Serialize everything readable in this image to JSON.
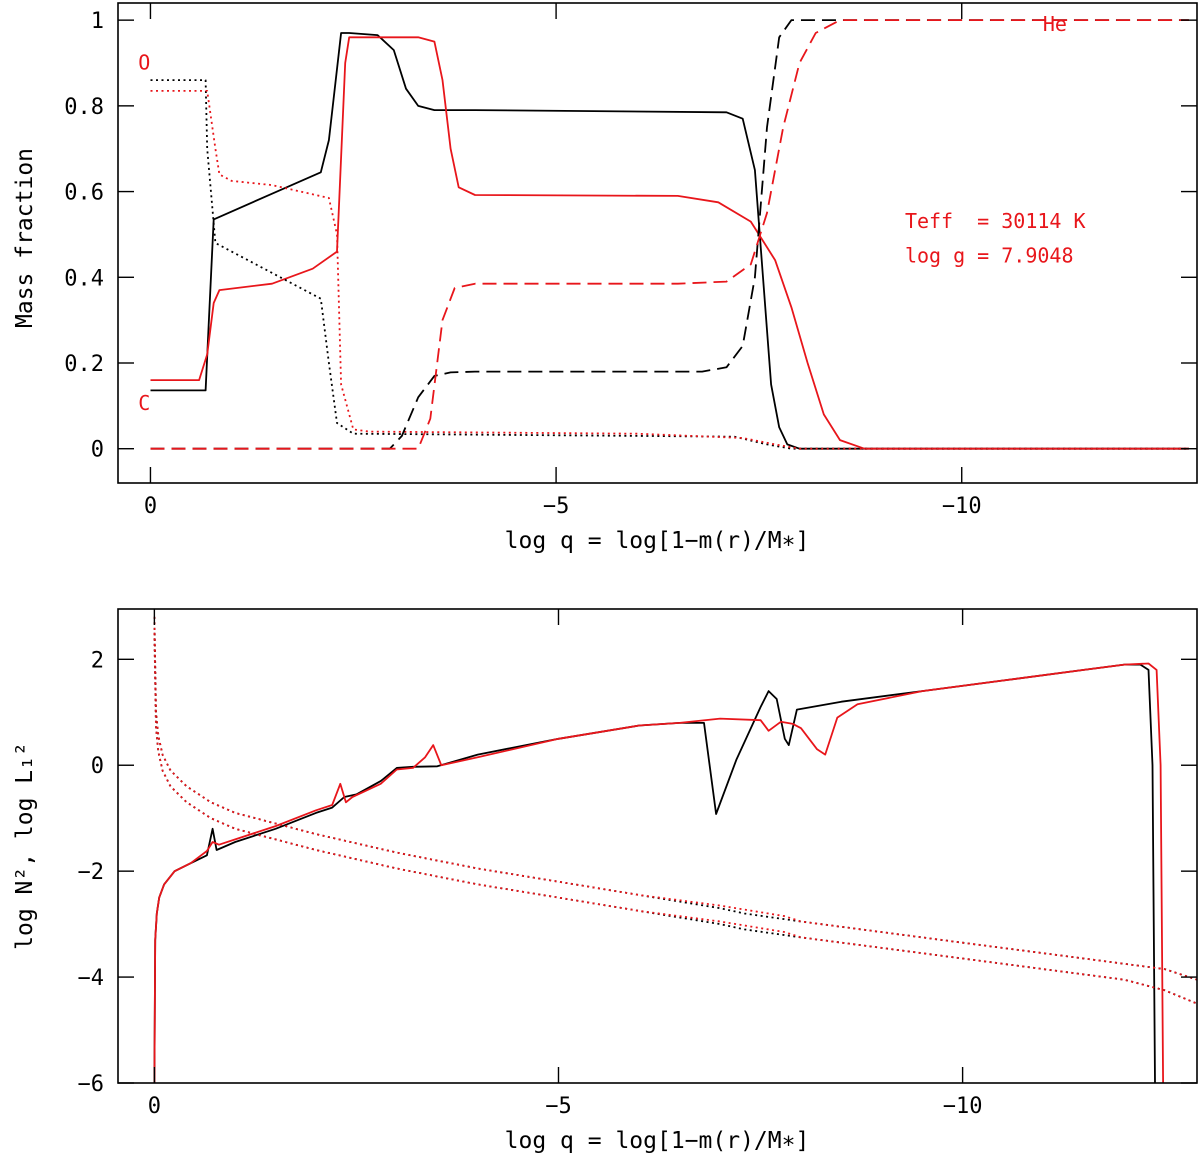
{
  "chart_data": [
    {
      "type": "line",
      "id": "top",
      "xlabel": "log q = log[1−m(r)/M∗]",
      "ylabel": "Mass fraction",
      "xlim": [
        0.4,
        -12.9
      ],
      "ylim": [
        -0.08,
        1.04
      ],
      "xticks": [
        0,
        -5,
        -10
      ],
      "xtick_labels": [
        "0",
        "−5",
        "−10"
      ],
      "yticks": [
        0,
        0.2,
        0.4,
        0.6,
        0.8,
        1
      ],
      "ytick_labels": [
        "0",
        "0.2",
        "0.4",
        "0.6",
        "0.8",
        "1"
      ],
      "annotations": [
        {
          "text": "O",
          "x": 0.15,
          "y": 0.885,
          "color": "#e8161b"
        },
        {
          "text": "C",
          "x": 0.15,
          "y": 0.09,
          "color": "#e8161b"
        },
        {
          "text": "He",
          "x": -11.0,
          "y": 0.975,
          "color": "#e8161b"
        },
        {
          "text": "Teff  = 30114 K",
          "x": -9.3,
          "y": 0.515,
          "color": "#e8161b"
        },
        {
          "text": "log g = 7.9048",
          "x": -9.3,
          "y": 0.435,
          "color": "#e8161b"
        }
      ],
      "series": [
        {
          "name": "C (black)",
          "element": "C",
          "color": "#000000",
          "dash": "solid",
          "x": [
            0,
            -0.68,
            -0.72,
            -0.78,
            -1.5,
            -2.1,
            -2.2,
            -2.35,
            -2.45,
            -2.8,
            -3.0,
            -3.15,
            -3.3,
            -3.5,
            -4.0,
            -7.1,
            -7.3,
            -7.45,
            -7.55,
            -7.65,
            -7.75,
            -7.85,
            -8.0,
            -12.8
          ],
          "y": [
            0.136,
            0.136,
            0.3,
            0.535,
            0.595,
            0.645,
            0.72,
            0.97,
            0.97,
            0.965,
            0.93,
            0.84,
            0.8,
            0.79,
            0.79,
            0.785,
            0.77,
            0.65,
            0.4,
            0.15,
            0.05,
            0.01,
            0.0,
            0.0
          ]
        },
        {
          "name": "C (red)",
          "element": "C",
          "color": "#e8161b",
          "dash": "solid",
          "x": [
            0,
            -0.6,
            -0.7,
            -0.78,
            -0.85,
            -1.5,
            -2.0,
            -2.3,
            -2.4,
            -2.45,
            -3.3,
            -3.5,
            -3.6,
            -3.7,
            -3.8,
            -4.0,
            -6.5,
            -7.0,
            -7.4,
            -7.7,
            -7.9,
            -8.1,
            -8.3,
            -8.5,
            -8.8,
            -12.8
          ],
          "y": [
            0.16,
            0.16,
            0.22,
            0.34,
            0.37,
            0.385,
            0.42,
            0.46,
            0.9,
            0.96,
            0.96,
            0.95,
            0.86,
            0.7,
            0.61,
            0.592,
            0.59,
            0.575,
            0.53,
            0.44,
            0.33,
            0.2,
            0.08,
            0.02,
            0.0,
            0.0
          ]
        },
        {
          "name": "O (black)",
          "element": "O",
          "color": "#000000",
          "dash": "dot",
          "x": [
            0,
            -0.68,
            -0.7,
            -0.8,
            -1.2,
            -2.1,
            -2.2,
            -2.3,
            -2.5,
            -6.0,
            -7.2,
            -7.6,
            -7.9,
            -12.8
          ],
          "y": [
            0.86,
            0.86,
            0.7,
            0.48,
            0.44,
            0.35,
            0.2,
            0.06,
            0.035,
            0.03,
            0.028,
            0.01,
            0.0,
            0.0
          ]
        },
        {
          "name": "O (red)",
          "element": "O",
          "color": "#e8161b",
          "dash": "dot",
          "x": [
            0,
            -0.7,
            -0.8,
            -0.85,
            -1.0,
            -1.5,
            -2.2,
            -2.3,
            -2.35,
            -2.5,
            -2.7,
            -6.0,
            -7.3,
            -7.7,
            -8.0,
            -12.8
          ],
          "y": [
            0.835,
            0.835,
            0.7,
            0.64,
            0.625,
            0.615,
            0.585,
            0.5,
            0.15,
            0.045,
            0.04,
            0.035,
            0.025,
            0.01,
            0.0,
            0.0
          ]
        },
        {
          "name": "He (black)",
          "element": "He",
          "color": "#000000",
          "dash": "dash",
          "x": [
            0,
            -2.95,
            -3.1,
            -3.3,
            -3.5,
            -3.7,
            -4.0,
            -6.8,
            -7.1,
            -7.3,
            -7.45,
            -7.6,
            -7.75,
            -7.9,
            -12.8
          ],
          "y": [
            0.0,
            0.0,
            0.03,
            0.12,
            0.17,
            0.178,
            0.18,
            0.18,
            0.19,
            0.24,
            0.4,
            0.75,
            0.96,
            1.0,
            1.0
          ]
        },
        {
          "name": "He (red)",
          "element": "He",
          "color": "#e8161b",
          "dash": "dash",
          "x": [
            0,
            -3.3,
            -3.45,
            -3.6,
            -3.75,
            -4.0,
            -6.5,
            -7.1,
            -7.4,
            -7.6,
            -7.8,
            -8.0,
            -8.2,
            -8.5,
            -12.8
          ],
          "y": [
            0.0,
            0.0,
            0.07,
            0.3,
            0.375,
            0.385,
            0.385,
            0.39,
            0.43,
            0.55,
            0.75,
            0.9,
            0.97,
            1.0,
            1.0
          ]
        }
      ]
    },
    {
      "type": "line",
      "id": "bottom",
      "xlabel": "log q = log[1−m(r)/M∗]",
      "ylabel": "log N², log L₁²",
      "xlim": [
        0.45,
        -12.9
      ],
      "ylim": [
        -6,
        2.95
      ],
      "xticks": [
        0,
        -5,
        -10
      ],
      "xtick_labels": [
        "0",
        "−5",
        "−10"
      ],
      "yticks": [
        2,
        0,
        -2,
        -4,
        -6
      ],
      "ytick_labels": [
        "2",
        "0",
        "−2",
        "−4",
        "−6"
      ],
      "series": [
        {
          "name": "log N² (black)",
          "color": "#000000",
          "dash": "solid",
          "x": [
            0,
            -0.01,
            -0.03,
            -0.06,
            -0.12,
            -0.25,
            -0.45,
            -0.65,
            -0.72,
            -0.77,
            -1.0,
            -1.5,
            -2.0,
            -2.2,
            -2.35,
            -2.5,
            -2.8,
            -3.0,
            -3.2,
            -3.5,
            -4.0,
            -5.0,
            -6.0,
            -6.5,
            -6.8,
            -6.95,
            -7.2,
            -7.5,
            -7.6,
            -7.7,
            -7.8,
            -7.85,
            -7.95,
            -8.5,
            -9.5,
            -10.5,
            -11.5,
            -12.0,
            -12.2,
            -12.3,
            -12.35,
            -12.38
          ],
          "y": [
            -6.0,
            -3.3,
            -2.8,
            -2.5,
            -2.25,
            -2.0,
            -1.85,
            -1.7,
            -1.2,
            -1.6,
            -1.45,
            -1.2,
            -0.9,
            -0.8,
            -0.6,
            -0.55,
            -0.3,
            -0.05,
            -0.03,
            -0.02,
            0.2,
            0.5,
            0.75,
            0.8,
            0.8,
            -0.92,
            0.1,
            1.1,
            1.4,
            1.25,
            0.5,
            0.38,
            1.05,
            1.2,
            1.4,
            1.6,
            1.8,
            1.9,
            1.9,
            1.8,
            0.0,
            -6.0
          ]
        },
        {
          "name": "log N² (red)",
          "color": "#e8161b",
          "dash": "solid",
          "x": [
            0,
            -0.01,
            -0.03,
            -0.06,
            -0.12,
            -0.25,
            -0.45,
            -0.65,
            -0.72,
            -0.8,
            -1.0,
            -1.5,
            -2.0,
            -2.2,
            -2.3,
            -2.37,
            -2.45,
            -2.8,
            -3.0,
            -3.2,
            -3.35,
            -3.45,
            -3.55,
            -4.0,
            -5.0,
            -6.0,
            -6.5,
            -7.0,
            -7.5,
            -7.6,
            -7.75,
            -7.9,
            -8.0,
            -8.2,
            -8.3,
            -8.45,
            -8.7,
            -9.5,
            -10.5,
            -11.5,
            -12.0,
            -12.3,
            -12.4,
            -12.45,
            -12.48
          ],
          "y": [
            -6.0,
            -3.3,
            -2.8,
            -2.5,
            -2.25,
            -2.0,
            -1.85,
            -1.62,
            -1.45,
            -1.5,
            -1.4,
            -1.15,
            -0.85,
            -0.75,
            -0.35,
            -0.7,
            -0.6,
            -0.35,
            -0.08,
            -0.05,
            0.15,
            0.38,
            0.0,
            0.15,
            0.5,
            0.75,
            0.8,
            0.88,
            0.85,
            0.65,
            0.82,
            0.78,
            0.7,
            0.3,
            0.2,
            0.9,
            1.15,
            1.4,
            1.6,
            1.8,
            1.9,
            1.92,
            1.8,
            0.0,
            -6.0
          ]
        },
        {
          "name": "log L₁² upper (black)",
          "color": "#000000",
          "dash": "dot",
          "x": [
            0,
            -0.02,
            -0.05,
            -0.1,
            -0.2,
            -0.4,
            -0.7,
            -1.0,
            -1.5,
            -2.0,
            -3.0,
            -4.0,
            -5.0,
            -6.0,
            -7.0,
            -7.3,
            -8.0,
            -9.0,
            -10.0,
            -11.0,
            -12.0,
            -12.5,
            -12.9
          ],
          "y": [
            2.8,
            1.0,
            0.55,
            0.2,
            -0.1,
            -0.4,
            -0.7,
            -0.9,
            -1.1,
            -1.3,
            -1.65,
            -1.95,
            -2.2,
            -2.45,
            -2.7,
            -2.8,
            -2.95,
            -3.15,
            -3.35,
            -3.55,
            -3.75,
            -3.85,
            -4.05
          ]
        },
        {
          "name": "log L₁² upper (red)",
          "color": "#e8161b",
          "dash": "dot",
          "x": [
            0,
            -0.02,
            -0.05,
            -0.1,
            -0.2,
            -0.4,
            -0.7,
            -1.0,
            -1.5,
            -2.0,
            -3.0,
            -4.0,
            -5.0,
            -6.0,
            -7.0,
            -7.8,
            -8.0,
            -9.0,
            -10.0,
            -11.0,
            -12.0,
            -12.5,
            -12.9
          ],
          "y": [
            2.8,
            1.0,
            0.55,
            0.2,
            -0.1,
            -0.4,
            -0.7,
            -0.9,
            -1.1,
            -1.3,
            -1.65,
            -1.95,
            -2.2,
            -2.45,
            -2.65,
            -2.85,
            -2.95,
            -3.15,
            -3.35,
            -3.55,
            -3.75,
            -3.85,
            -4.05
          ]
        },
        {
          "name": "log L₁² lower (black)",
          "color": "#000000",
          "dash": "dot",
          "x": [
            0,
            -0.02,
            -0.05,
            -0.1,
            -0.2,
            -0.4,
            -0.7,
            -1.0,
            -1.5,
            -2.0,
            -3.0,
            -4.0,
            -5.0,
            -6.0,
            -7.0,
            -7.3,
            -8.0,
            -9.0,
            -10.0,
            -11.0,
            -12.0,
            -12.5,
            -12.9
          ],
          "y": [
            2.5,
            0.7,
            0.25,
            -0.1,
            -0.4,
            -0.7,
            -1.0,
            -1.2,
            -1.4,
            -1.6,
            -1.95,
            -2.25,
            -2.5,
            -2.75,
            -3.0,
            -3.1,
            -3.25,
            -3.45,
            -3.65,
            -3.85,
            -4.05,
            -4.25,
            -4.5
          ]
        },
        {
          "name": "log L₁² lower (red)",
          "color": "#e8161b",
          "dash": "dot",
          "x": [
            0,
            -0.02,
            -0.05,
            -0.1,
            -0.2,
            -0.4,
            -0.7,
            -1.0,
            -1.5,
            -2.0,
            -3.0,
            -4.0,
            -5.0,
            -6.0,
            -7.0,
            -7.8,
            -8.0,
            -9.0,
            -10.0,
            -11.0,
            -12.0,
            -12.5,
            -12.9
          ],
          "y": [
            2.5,
            0.7,
            0.25,
            -0.1,
            -0.4,
            -0.7,
            -1.0,
            -1.2,
            -1.4,
            -1.6,
            -1.95,
            -2.25,
            -2.5,
            -2.75,
            -2.95,
            -3.15,
            -3.25,
            -3.45,
            -3.65,
            -3.85,
            -4.05,
            -4.25,
            -4.5
          ]
        }
      ]
    }
  ]
}
